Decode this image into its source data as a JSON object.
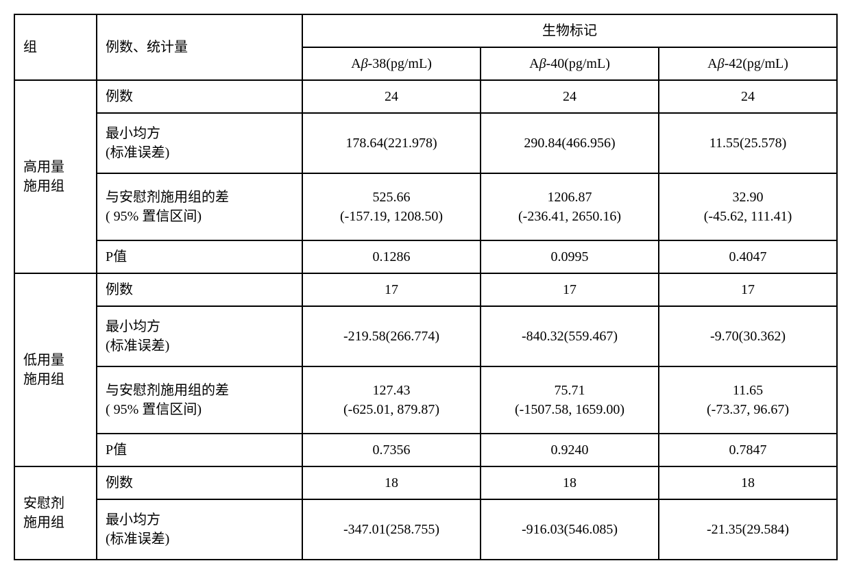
{
  "header": {
    "group": "组",
    "stat": "例数、统计量",
    "bio": "生物标记",
    "ab38_pre": "A",
    "ab38_beta": "β",
    "ab38_post": "-38(pg/mL)",
    "ab40_pre": "A",
    "ab40_beta": "β",
    "ab40_post": "-40(pg/mL)",
    "ab42_pre": "A",
    "ab42_beta": "β",
    "ab42_post": "-42(pg/mL)"
  },
  "rowlabels": {
    "n": "例数",
    "lsm_l1": "最小均方",
    "lsm_l2": "(标准误差)",
    "diff_l1": "与安慰剂施用组的差",
    "diff_l2": "( 95%  置信区间)",
    "p": "P值"
  },
  "groups": {
    "high_l1": "高用量",
    "high_l2": "施用组",
    "low_l1": "低用量",
    "low_l2": "施用组",
    "pbo_l1": "安慰剂",
    "pbo_l2": "施用组"
  },
  "high": {
    "n": {
      "ab38": "24",
      "ab40": "24",
      "ab42": "24"
    },
    "lsm": {
      "ab38": "178.64(221.978)",
      "ab40": "290.84(466.956)",
      "ab42": "11.55(25.578)"
    },
    "diff": {
      "ab38_l1": "525.66",
      "ab38_l2": "(-157.19, 1208.50)",
      "ab40_l1": "1206.87",
      "ab40_l2": "(-236.41, 2650.16)",
      "ab42_l1": "32.90",
      "ab42_l2": "(-45.62, 111.41)"
    },
    "p": {
      "ab38": "0.1286",
      "ab40": "0.0995",
      "ab42": "0.4047"
    }
  },
  "low": {
    "n": {
      "ab38": "17",
      "ab40": "17",
      "ab42": "17"
    },
    "lsm": {
      "ab38": "-219.58(266.774)",
      "ab40": "-840.32(559.467)",
      "ab42": "-9.70(30.362)"
    },
    "diff": {
      "ab38_l1": "127.43",
      "ab38_l2": "(-625.01, 879.87)",
      "ab40_l1": "75.71",
      "ab40_l2": "(-1507.58, 1659.00)",
      "ab42_l1": "11.65",
      "ab42_l2": "(-73.37, 96.67)"
    },
    "p": {
      "ab38": "0.7356",
      "ab40": "0.9240",
      "ab42": "0.7847"
    }
  },
  "pbo": {
    "n": {
      "ab38": "18",
      "ab40": "18",
      "ab42": "18"
    },
    "lsm": {
      "ab38": "-347.01(258.755)",
      "ab40": "-916.03(546.085)",
      "ab42": "-21.35(29.584)"
    }
  }
}
